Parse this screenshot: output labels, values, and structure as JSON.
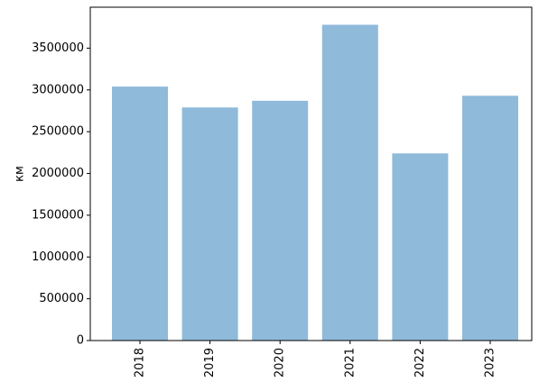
{
  "chart_data": {
    "type": "bar",
    "ylabel": "км",
    "categories": [
      "2018",
      "2019",
      "2020",
      "2021",
      "2022",
      "2023"
    ],
    "values": [
      3040000,
      2790000,
      2870000,
      3780000,
      2240000,
      2930000
    ],
    "color": "#8fbada",
    "ylim": [
      0,
      3990000
    ],
    "yticks": [
      0,
      500000,
      1000000,
      1500000,
      2000000,
      2500000,
      3000000,
      3500000
    ],
    "grid": false
  }
}
